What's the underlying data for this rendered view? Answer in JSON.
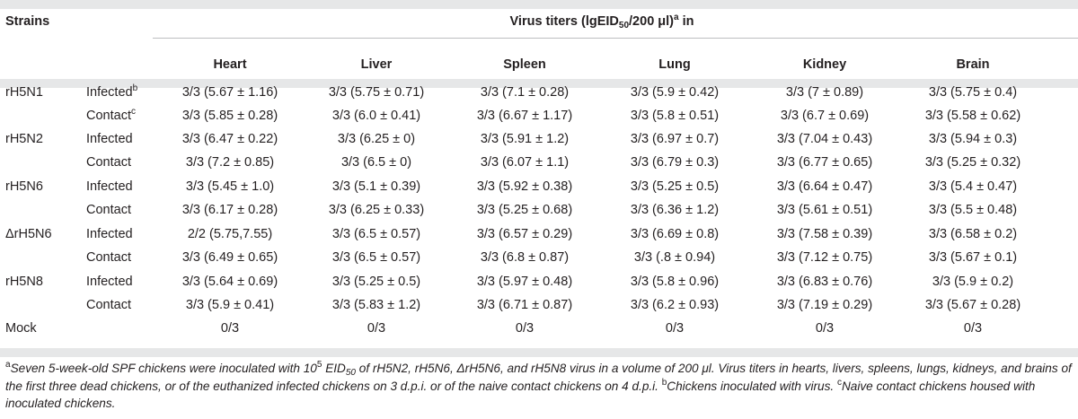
{
  "table": {
    "header": {
      "strains_label": "Strains",
      "titer_pre": "Virus titers (lgEID",
      "titer_sub": "50",
      "titer_post": "/200 μl)",
      "titer_sup": "a",
      "titer_end": " in",
      "columns": [
        "Heart",
        "Liver",
        "Spleen",
        "Lung",
        "Kidney",
        "Brain"
      ]
    },
    "rows": [
      {
        "strain": "rH5N1",
        "group": "Infected",
        "group_sup": "b",
        "cells": [
          "3/3 (5.67 ± 1.16)",
          "3/3 (5.75 ± 0.71)",
          "3/3 (7.1 ± 0.28)",
          "3/3 (5.9 ± 0.42)",
          "3/3 (7 ± 0.89)",
          "3/3 (5.75 ± 0.4)"
        ]
      },
      {
        "strain": "",
        "group": "Contact",
        "group_sup": "c",
        "cells": [
          "3/3 (5.85 ± 0.28)",
          "3/3 (6.0 ± 0.41)",
          "3/3 (6.67 ± 1.17)",
          "3/3 (5.8 ± 0.51)",
          "3/3 (6.7 ± 0.69)",
          "3/3 (5.58 ± 0.62)"
        ]
      },
      {
        "strain": "rH5N2",
        "group": "Infected",
        "group_sup": "",
        "cells": [
          "3/3 (6.47 ± 0.22)",
          "3/3 (6.25 ± 0)",
          "3/3 (5.91 ± 1.2)",
          "3/3 (6.97 ± 0.7)",
          "3/3 (7.04 ± 0.43)",
          "3/3 (5.94 ± 0.3)"
        ]
      },
      {
        "strain": "",
        "group": "Contact",
        "group_sup": "",
        "cells": [
          "3/3 (7.2 ± 0.85)",
          "3/3 (6.5 ± 0)",
          "3/3 (6.07 ± 1.1)",
          "3/3 (6.79 ± 0.3)",
          "3/3 (6.77 ± 0.65)",
          "3/3 (5.25 ± 0.32)"
        ]
      },
      {
        "strain": "rH5N6",
        "group": "Infected",
        "group_sup": "",
        "cells": [
          "3/3 (5.45 ± 1.0)",
          "3/3 (5.1 ± 0.39)",
          "3/3 (5.92 ± 0.38)",
          "3/3 (5.25 ± 0.5)",
          "3/3 (6.64 ± 0.47)",
          "3/3 (5.4 ± 0.47)"
        ]
      },
      {
        "strain": "",
        "group": "Contact",
        "group_sup": "",
        "cells": [
          "3/3 (6.17 ± 0.28)",
          "3/3 (6.25 ± 0.33)",
          "3/3 (5.25 ± 0.68)",
          "3/3 (6.36 ± 1.2)",
          "3/3 (5.61 ± 0.51)",
          "3/3 (5.5 ± 0.48)"
        ]
      },
      {
        "strain": "ΔrH5N6",
        "group": "Infected",
        "group_sup": "",
        "cells": [
          "2/2 (5.75,7.55)",
          "3/3 (6.5 ± 0.57)",
          "3/3 (6.57 ± 0.29)",
          "3/3 (6.69 ± 0.8)",
          "3/3 (7.58 ± 0.39)",
          "3/3 (6.58 ± 0.2)"
        ]
      },
      {
        "strain": "",
        "group": "Contact",
        "group_sup": "",
        "cells": [
          "3/3 (6.49 ± 0.65)",
          "3/3 (6.5 ± 0.57)",
          "3/3 (6.8 ± 0.87)",
          "3/3 (.8 ± 0.94)",
          "3/3 (7.12 ± 0.75)",
          "3/3 (5.67 ± 0.1)"
        ]
      },
      {
        "strain": "rH5N8",
        "group": "Infected",
        "group_sup": "",
        "cells": [
          "3/3 (5.64 ± 0.69)",
          "3/3 (5.25 ± 0.5)",
          "3/3 (5.97 ± 0.48)",
          "3/3 (5.8 ± 0.96)",
          "3/3 (6.83 ± 0.76)",
          "3/3 (5.9 ± 0.2)"
        ]
      },
      {
        "strain": "",
        "group": "Contact",
        "group_sup": "",
        "cells": [
          "3/3 (5.9 ± 0.41)",
          "3/3 (5.83 ± 1.2)",
          "3/3 (6.71 ± 0.87)",
          "3/3 (6.2 ± 0.93)",
          "3/3 (7.19 ± 0.29)",
          "3/3 (5.67 ± 0.28)"
        ]
      },
      {
        "strain": "Mock",
        "group": "",
        "group_sup": "",
        "cells": [
          "0/3",
          "0/3",
          "0/3",
          "0/3",
          "0/3",
          "0/3"
        ]
      }
    ]
  },
  "footnote": {
    "a_mark": "a",
    "a_1": "Seven 5-week-old SPF chickens were inoculated with 10",
    "a_exp": "5",
    "a_2": " EID",
    "a_sub": "50",
    "a_3": " of rH5N2, rH5N6, ΔrH5N6, and rH5N8 virus in a volume of 200 μl. Virus titers in hearts, livers, spleens, lungs, kidneys, and brains of the first three dead chickens, or of the euthanized infected chickens on 3 d.p.i. or of the naive contact chickens on 4 d.p.i. ",
    "b_mark": "b",
    "b_text": "Chickens inoculated with virus. ",
    "c_mark": "c",
    "c_text": "Naive contact chickens housed with inoculated chickens."
  }
}
